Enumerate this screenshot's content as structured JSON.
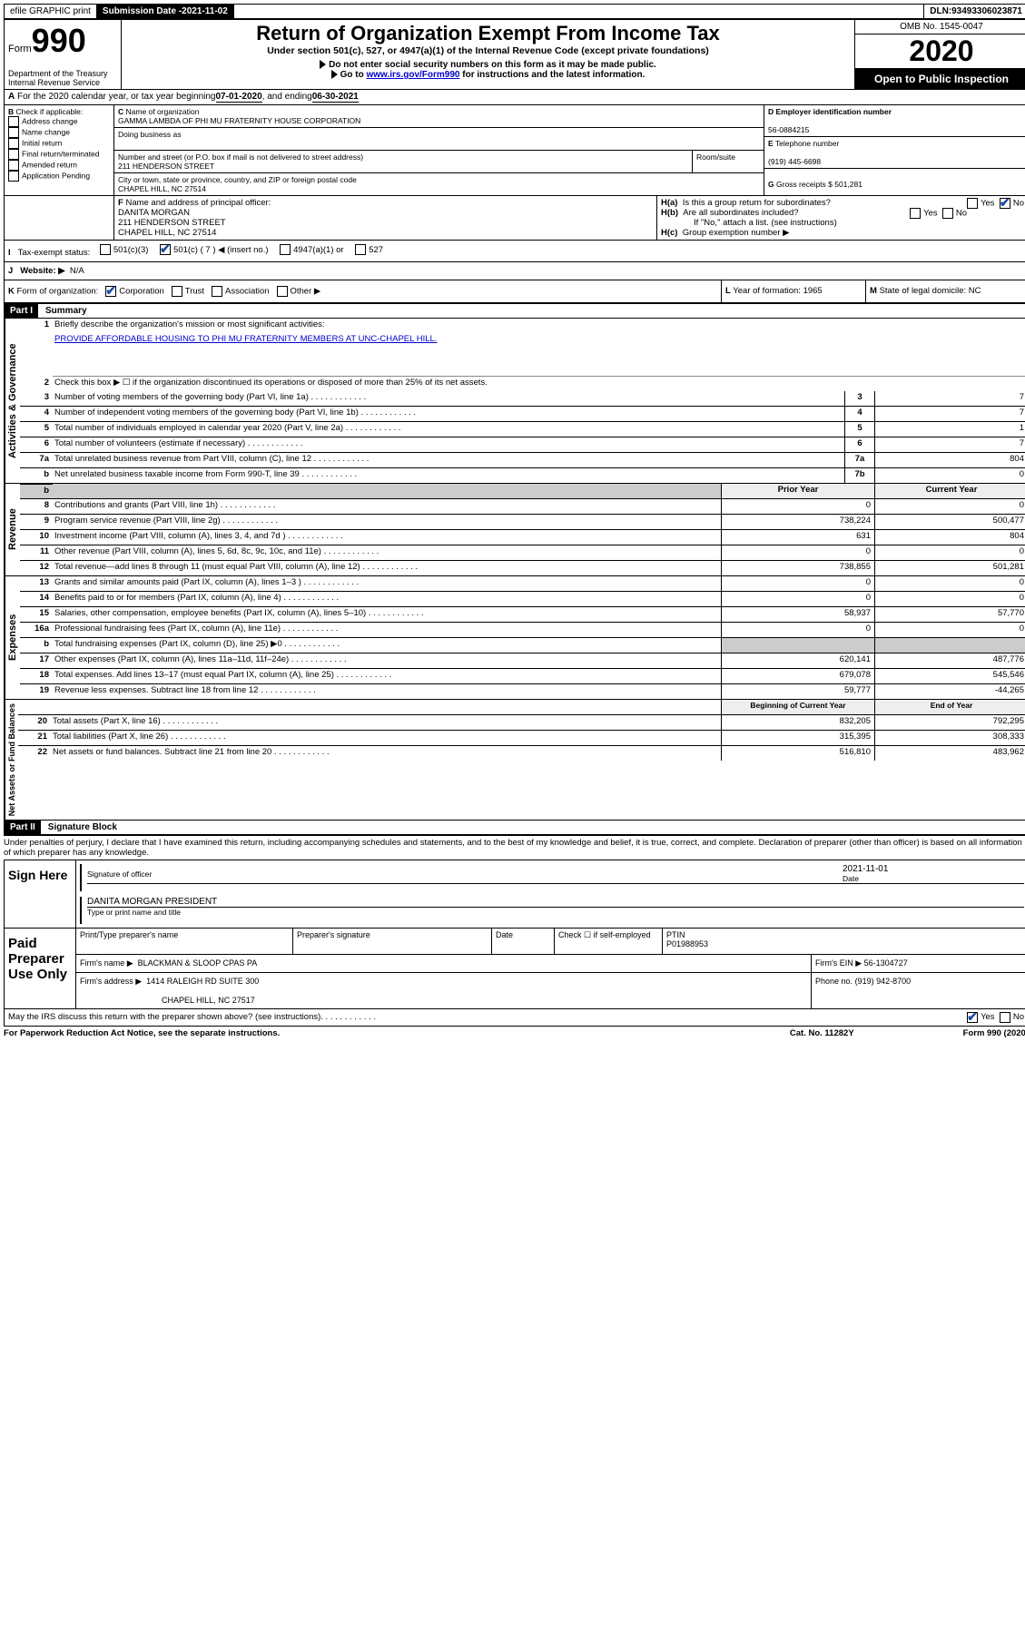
{
  "topbar": {
    "efile": "efile GRAPHIC print",
    "subdate_lbl": "Submission Date - ",
    "subdate": "2021-11-02",
    "dln_lbl": "DLN: ",
    "dln": "93493306023871"
  },
  "header": {
    "form_word": "Form",
    "form_num": "990",
    "dept1": "Department of the Treasury",
    "dept2": "Internal Revenue Service",
    "title": "Return of Organization Exempt From Income Tax",
    "subtitle": "Under section 501(c), 527, or 4947(a)(1) of the Internal Revenue Code (except private foundations)",
    "note1": "Do not enter social security numbers on this form as it may be made public.",
    "note2_pre": "Go to ",
    "note2_link": "www.irs.gov/Form990",
    "note2_post": " for instructions and the latest information.",
    "omb": "OMB No. 1545-0047",
    "year": "2020",
    "open": "Open to Public Inspection"
  },
  "A": {
    "text": "For the 2020 calendar year, or tax year beginning ",
    "begin": "07-01-2020",
    "mid": " , and ending ",
    "end": "06-30-2021"
  },
  "B": {
    "lbl": "Check if applicable:",
    "opts": [
      "Address change",
      "Name change",
      "Initial return",
      "Final return/terminated",
      "Amended return",
      "Application Pending"
    ]
  },
  "C": {
    "name_lbl": "Name of organization",
    "name": "GAMMA LAMBDA OF PHI MU FRATERNITY HOUSE CORPORATION",
    "dba_lbl": "Doing business as",
    "street_lbl": "Number and street (or P.O. box if mail is not delivered to street address)",
    "room_lbl": "Room/suite",
    "street": "211 HENDERSON STREET",
    "city_lbl": "City or town, state or province, country, and ZIP or foreign postal code",
    "city": "CHAPEL HILL, NC  27514"
  },
  "D": {
    "lbl": "Employer identification number",
    "val": "56-0884215"
  },
  "E": {
    "lbl": "Telephone number",
    "val": "(919) 445-6698"
  },
  "G": {
    "lbl": "Gross receipts $",
    "val": "501,281"
  },
  "F": {
    "lbl": "Name and address of principal officer:",
    "name": "DANITA MORGAN",
    "addr1": "211 HENDERSON STREET",
    "addr2": "CHAPEL HILL, NC  27514"
  },
  "H": {
    "a": "Is this a group return for subordinates?",
    "b": "Are all subordinates included?",
    "b2": "If \"No,\" attach a list. (see instructions)",
    "c": "Group exemption number ▶",
    "yes": "Yes",
    "no": "No"
  },
  "I": {
    "lbl": "Tax-exempt status:",
    "o1": "501(c)(3)",
    "o2": "501(c) ( 7 ) ◀ (insert no.)",
    "o3": "4947(a)(1) or",
    "o4": "527"
  },
  "J": {
    "lbl": "Website: ▶",
    "val": "N/A"
  },
  "K": {
    "lbl": "Form of organization:",
    "o1": "Corporation",
    "o2": "Trust",
    "o3": "Association",
    "o4": "Other ▶"
  },
  "L": {
    "lbl": "Year of formation:",
    "val": "1965"
  },
  "M": {
    "lbl": "State of legal domicile:",
    "val": "NC"
  },
  "part1": {
    "bar": "Part I",
    "title": "Summary"
  },
  "sections": {
    "ag": "Activities & Governance",
    "rev": "Revenue",
    "exp": "Expenses",
    "na": "Net Assets or Fund Balances"
  },
  "p1": {
    "l1": "Briefly describe the organization's mission or most significant activities:",
    "l1v": "PROVIDE AFFORDABLE HOUSING TO PHI MU FRATERNITY MEMBERS AT UNC-CHAPEL HILL.",
    "l2": "Check this box ▶ ☐  if the organization discontinued its operations or disposed of more than 25% of its net assets.",
    "rows_ag": [
      {
        "n": "3",
        "d": "Number of voting members of the governing body (Part VI, line 1a)",
        "b": "3",
        "v": "7"
      },
      {
        "n": "4",
        "d": "Number of independent voting members of the governing body (Part VI, line 1b)",
        "b": "4",
        "v": "7"
      },
      {
        "n": "5",
        "d": "Total number of individuals employed in calendar year 2020 (Part V, line 2a)",
        "b": "5",
        "v": "1"
      },
      {
        "n": "6",
        "d": "Total number of volunteers (estimate if necessary)",
        "b": "6",
        "v": "7"
      },
      {
        "n": "7a",
        "d": "Total unrelated business revenue from Part VIII, column (C), line 12",
        "b": "7a",
        "v": "804"
      },
      {
        "n": "b",
        "d": "Net unrelated business taxable income from Form 990-T, line 39",
        "b": "7b",
        "v": "0"
      }
    ],
    "pyhdr": "Prior Year",
    "cyhdr": "Current Year",
    "rows_rev": [
      {
        "n": "8",
        "d": "Contributions and grants (Part VIII, line 1h)",
        "py": "0",
        "cy": "0"
      },
      {
        "n": "9",
        "d": "Program service revenue (Part VIII, line 2g)",
        "py": "738,224",
        "cy": "500,477"
      },
      {
        "n": "10",
        "d": "Investment income (Part VIII, column (A), lines 3, 4, and 7d )",
        "py": "631",
        "cy": "804"
      },
      {
        "n": "11",
        "d": "Other revenue (Part VIII, column (A), lines 5, 6d, 8c, 9c, 10c, and 11e)",
        "py": "0",
        "cy": "0"
      },
      {
        "n": "12",
        "d": "Total revenue—add lines 8 through 11 (must equal Part VIII, column (A), line 12)",
        "py": "738,855",
        "cy": "501,281"
      }
    ],
    "rows_exp": [
      {
        "n": "13",
        "d": "Grants and similar amounts paid (Part IX, column (A), lines 1–3 )",
        "py": "0",
        "cy": "0"
      },
      {
        "n": "14",
        "d": "Benefits paid to or for members (Part IX, column (A), line 4)",
        "py": "0",
        "cy": "0"
      },
      {
        "n": "15",
        "d": "Salaries, other compensation, employee benefits (Part IX, column (A), lines 5–10)",
        "py": "58,937",
        "cy": "57,770"
      },
      {
        "n": "16a",
        "d": "Professional fundraising fees (Part IX, column (A), line 11e)",
        "py": "0",
        "cy": "0"
      },
      {
        "n": "b",
        "d": "Total fundraising expenses (Part IX, column (D), line 25) ▶0",
        "py": "",
        "cy": "",
        "grey": true
      },
      {
        "n": "17",
        "d": "Other expenses (Part IX, column (A), lines 11a–11d, 11f–24e)",
        "py": "620,141",
        "cy": "487,776"
      },
      {
        "n": "18",
        "d": "Total expenses. Add lines 13–17 (must equal Part IX, column (A), line 25)",
        "py": "679,078",
        "cy": "545,546"
      },
      {
        "n": "19",
        "d": "Revenue less expenses. Subtract line 18 from line 12",
        "py": "59,777",
        "cy": "-44,265"
      }
    ],
    "bybhdr": "Beginning of Current Year",
    "eoyhdr": "End of Year",
    "rows_na": [
      {
        "n": "20",
        "d": "Total assets (Part X, line 16)",
        "py": "832,205",
        "cy": "792,295"
      },
      {
        "n": "21",
        "d": "Total liabilities (Part X, line 26)",
        "py": "315,395",
        "cy": "308,333"
      },
      {
        "n": "22",
        "d": "Net assets or fund balances. Subtract line 21 from line 20",
        "py": "516,810",
        "cy": "483,962"
      }
    ]
  },
  "part2": {
    "bar": "Part II",
    "title": "Signature Block"
  },
  "perjury": "Under penalties of perjury, I declare that I have examined this return, including accompanying schedules and statements, and to the best of my knowledge and belief, it is true, correct, and complete. Declaration of preparer (other than officer) is based on all information of which preparer has any knowledge.",
  "sign": {
    "here": "Sign Here",
    "sigoff": "Signature of officer",
    "date": "Date",
    "dateval": "2021-11-01",
    "name": "DANITA MORGAN  PRESIDENT",
    "typed": "Type or print name and title"
  },
  "paid": {
    "lbl": "Paid Preparer Use Only",
    "h1": "Print/Type preparer's name",
    "h2": "Preparer's signature",
    "h3": "Date",
    "h4": "Check ☐  if self-employed",
    "h5": "PTIN",
    "ptin": "P01988953",
    "firm_lbl": "Firm's name   ▶",
    "firm": "BLACKMAN & SLOOP CPAS PA",
    "ein_lbl": "Firm's EIN ▶",
    "ein": "56-1304727",
    "addr_lbl": "Firm's address ▶",
    "addr1": "1414 RALEIGH RD SUITE 300",
    "addr2": "CHAPEL HILL, NC  27517",
    "phone_lbl": "Phone no.",
    "phone": "(919) 942-8700"
  },
  "footer": {
    "q": "May the IRS discuss this return with the preparer shown above? (see instructions)",
    "yes": "Yes",
    "no": "No",
    "pra": "For Paperwork Reduction Act Notice, see the separate instructions.",
    "cat": "Cat. No. 11282Y",
    "form": "Form 990 (2020)"
  }
}
